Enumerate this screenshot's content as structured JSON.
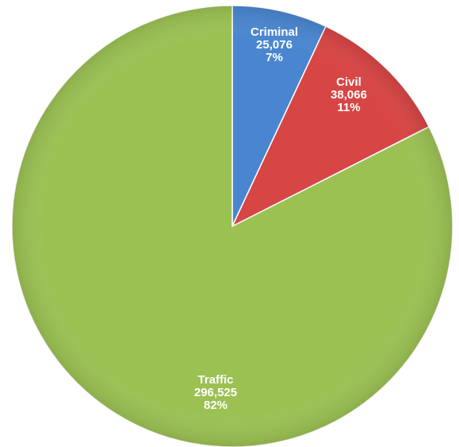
{
  "chart_data": {
    "type": "pie",
    "title": "",
    "start_angle_deg": 0,
    "direction": "clockwise",
    "slices": [
      {
        "name": "Criminal",
        "value": 25076,
        "value_label": "25,076",
        "percent_label": "7%",
        "color": "#4a86d0"
      },
      {
        "name": "Civil",
        "value": 38066,
        "value_label": "38,066",
        "percent_label": "11%",
        "color": "#d84545"
      },
      {
        "name": "Traffic",
        "value": 296525,
        "value_label": "296,525",
        "percent_label": "82%",
        "color": "#9bc153"
      }
    ]
  }
}
